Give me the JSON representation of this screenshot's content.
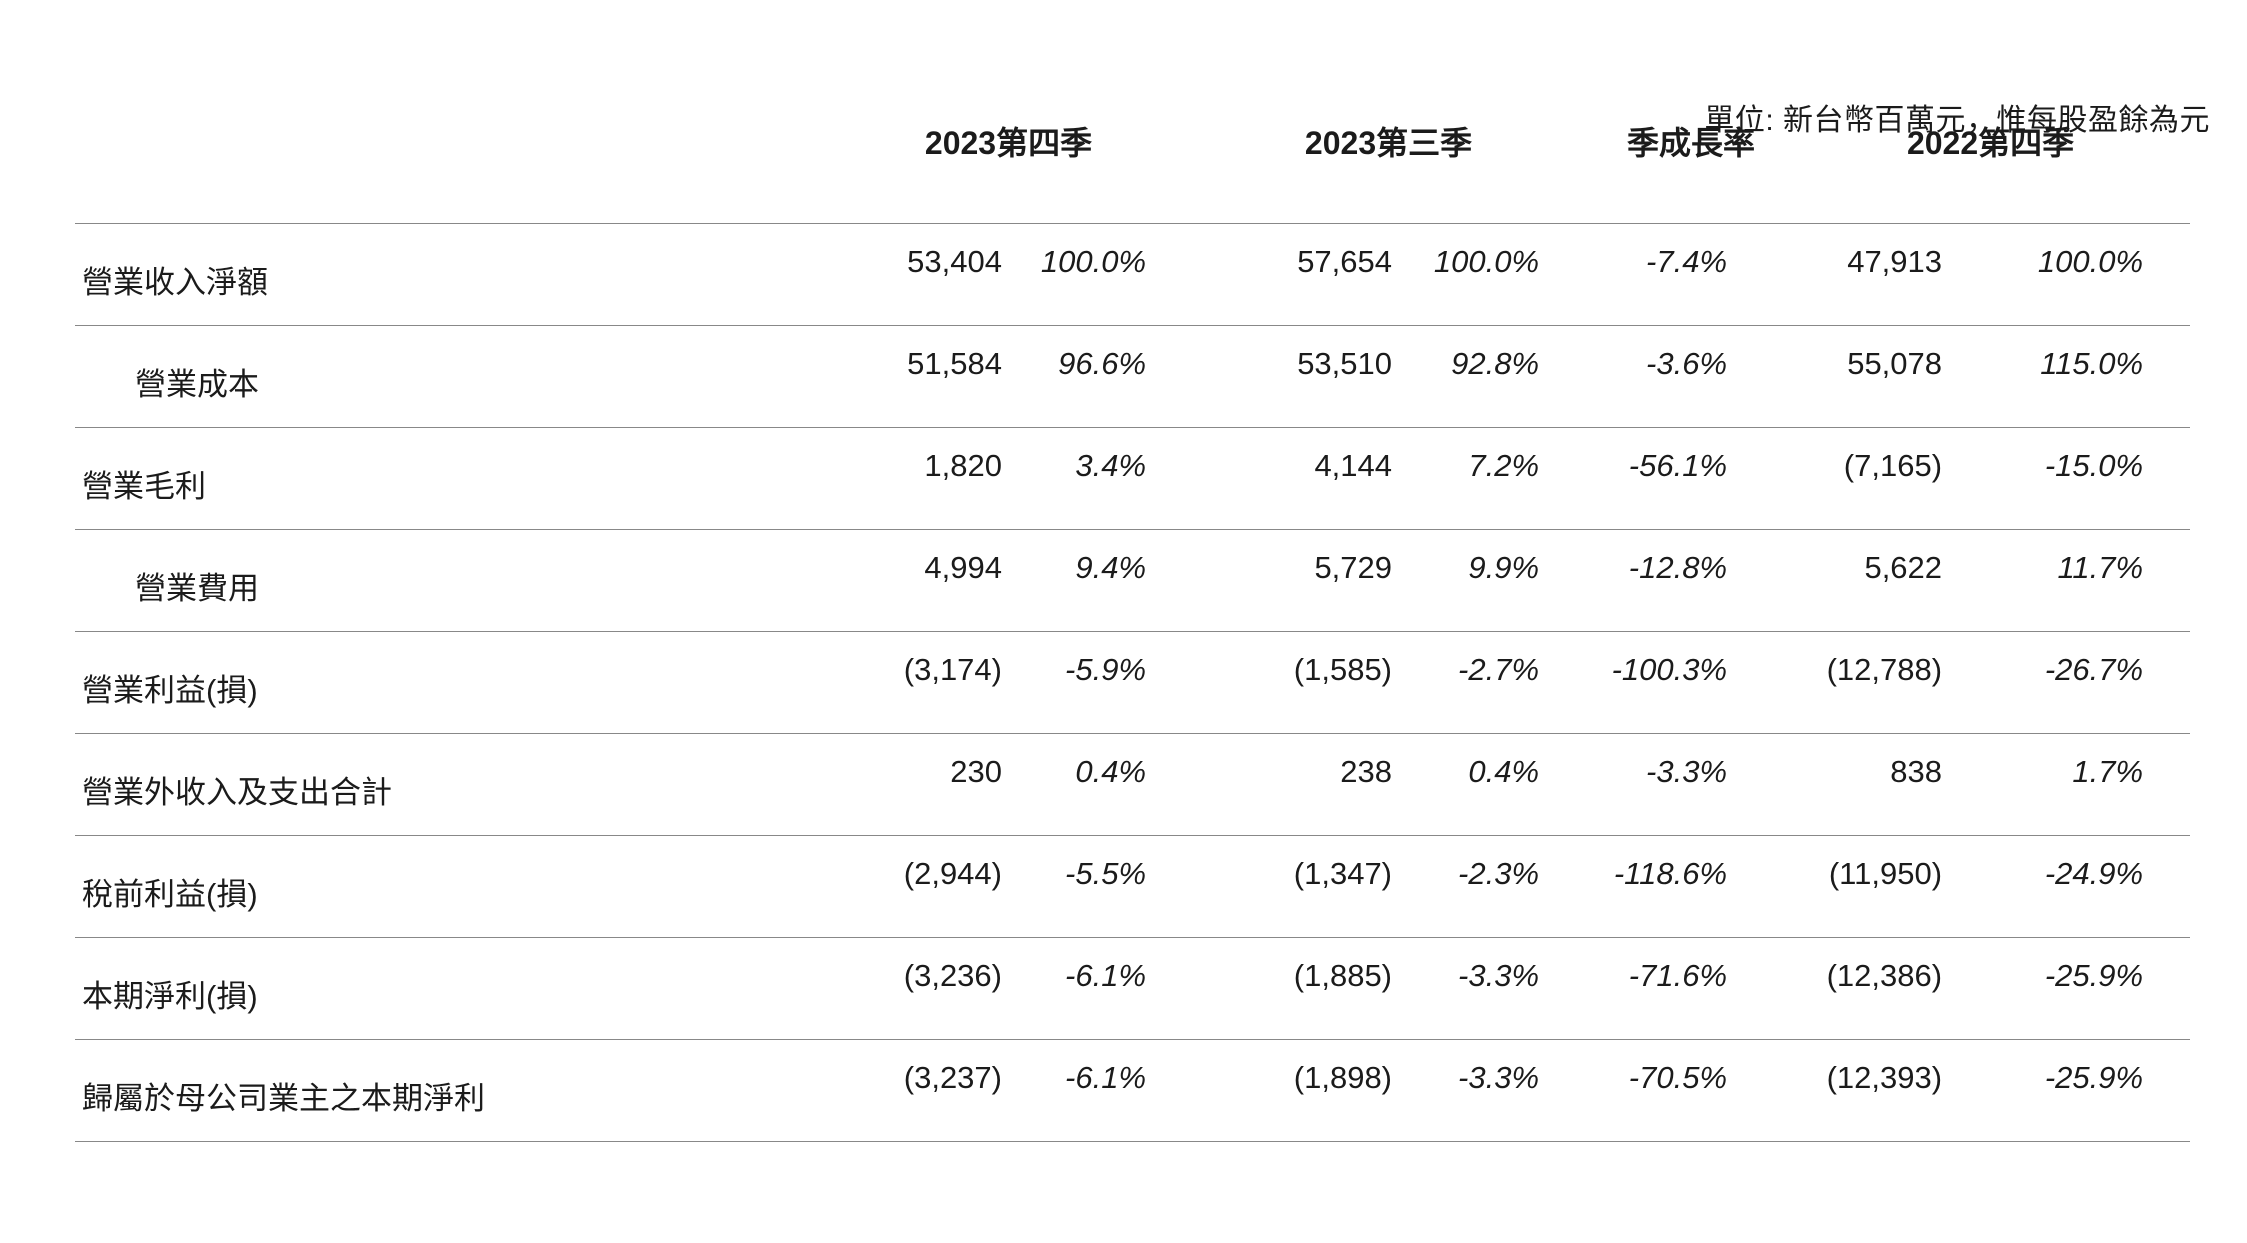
{
  "unit_note": "單位: 新台幣百萬元，惟每股盈餘為元",
  "table": {
    "column_headers": [
      "2023第四季",
      "2023第三季",
      "季成長率",
      "2022第四季"
    ],
    "rows": [
      {
        "label": "營業收入淨額",
        "indent": false,
        "cells": [
          "53,404",
          "100.0%",
          "57,654",
          "100.0%",
          "-7.4%",
          "47,913",
          "100.0%"
        ]
      },
      {
        "label": "營業成本",
        "indent": true,
        "cells": [
          "51,584",
          "96.6%",
          "53,510",
          "92.8%",
          "-3.6%",
          "55,078",
          "115.0%"
        ]
      },
      {
        "label": "營業毛利",
        "indent": false,
        "cells": [
          "1,820",
          "3.4%",
          "4,144",
          "7.2%",
          "-56.1%",
          "(7,165)",
          "-15.0%"
        ]
      },
      {
        "label": "營業費用",
        "indent": true,
        "cells": [
          "4,994",
          "9.4%",
          "5,729",
          "9.9%",
          "-12.8%",
          "5,622",
          "11.7%"
        ]
      },
      {
        "label": "營業利益(損)",
        "indent": false,
        "cells": [
          "(3,174)",
          "-5.9%",
          "(1,585)",
          "-2.7%",
          "-100.3%",
          "(12,788)",
          "-26.7%"
        ]
      },
      {
        "label": "營業外收入及支出合計",
        "indent": false,
        "cells": [
          "230",
          "0.4%",
          "238",
          "0.4%",
          "-3.3%",
          "838",
          "1.7%"
        ]
      },
      {
        "label": "稅前利益(損)",
        "indent": false,
        "cells": [
          "(2,944)",
          "-5.5%",
          "(1,347)",
          "-2.3%",
          "-118.6%",
          "(11,950)",
          "-24.9%"
        ]
      },
      {
        "label": "本期淨利(損)",
        "indent": false,
        "cells": [
          "(3,236)",
          "-6.1%",
          "(1,885)",
          "-3.3%",
          "-71.6%",
          "(12,386)",
          "-25.9%"
        ]
      },
      {
        "label": "歸屬於母公司業主之本期淨利",
        "indent": false,
        "cells": [
          "(3,237)",
          "-6.1%",
          "(1,898)",
          "-3.3%",
          "-70.5%",
          "(12,393)",
          "-25.9%"
        ]
      }
    ]
  }
}
